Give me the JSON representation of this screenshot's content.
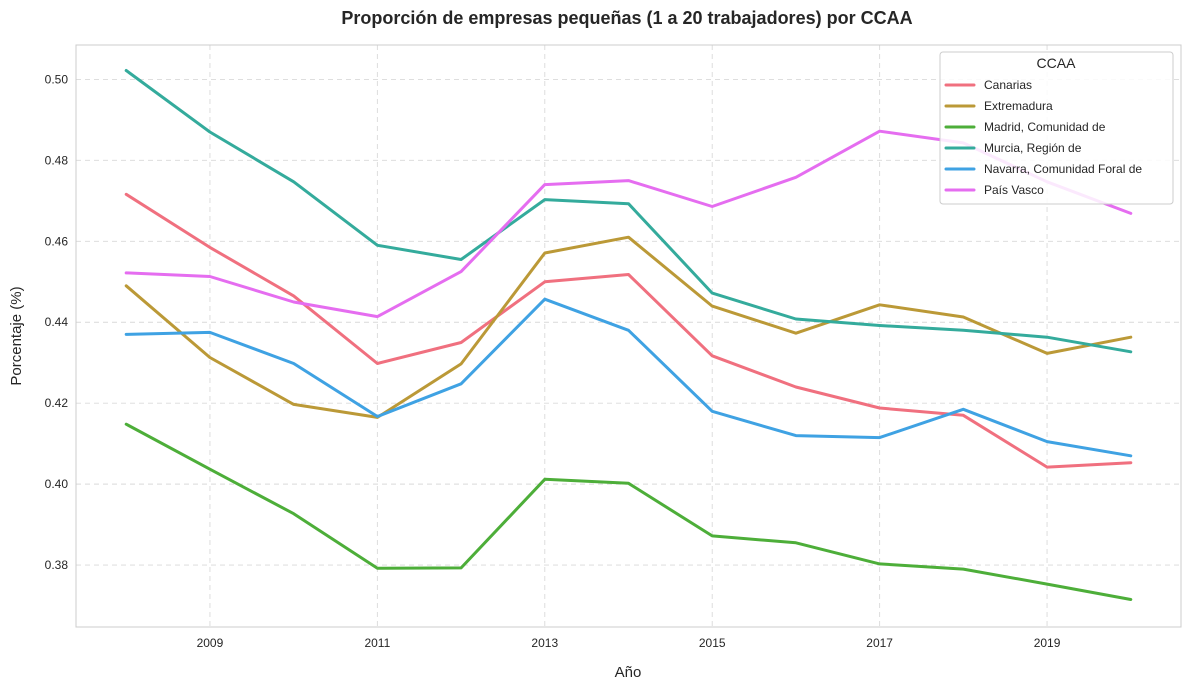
{
  "chart_data": {
    "type": "line",
    "title": "Proporción de empresas pequeñas (1 a 20 trabajadores) por CCAA",
    "xlabel": "Año",
    "ylabel": "Porcentaje (%)",
    "x": [
      2008,
      2009,
      2010,
      2011,
      2012,
      2013,
      2014,
      2015,
      2016,
      2017,
      2018,
      2019,
      2020
    ],
    "xticks": [
      2009,
      2011,
      2013,
      2015,
      2017,
      2019
    ],
    "yticks": [
      0.38,
      0.4,
      0.42,
      0.44,
      0.46,
      0.48,
      0.5
    ],
    "xlim": [
      2007.4,
      2020.6
    ],
    "ylim": [
      0.3647,
      0.5085
    ],
    "grid": true,
    "legend_title": "CCAA",
    "legend_position": "top-right",
    "series": [
      {
        "name": "Canarias",
        "color": "#f0707f",
        "values": [
          0.4716,
          0.4585,
          0.4465,
          0.4298,
          0.435,
          0.45,
          0.4518,
          0.4317,
          0.424,
          0.4188,
          0.417,
          0.4042,
          0.4053
        ]
      },
      {
        "name": "Extremadura",
        "color": "#bb9937",
        "values": [
          0.449,
          0.4313,
          0.4197,
          0.4165,
          0.4297,
          0.4571,
          0.461,
          0.444,
          0.4373,
          0.4443,
          0.4413,
          0.4323,
          0.4363
        ]
      },
      {
        "name": "Madrid, Comunidad de",
        "color": "#4dae39",
        "values": [
          0.4148,
          0.4037,
          0.3927,
          0.3792,
          0.3793,
          0.4012,
          0.4002,
          0.3872,
          0.3855,
          0.3803,
          0.379,
          0.3753,
          0.3715
        ]
      },
      {
        "name": "Murcia, Región de",
        "color": "#34ab9c",
        "values": [
          0.5022,
          0.487,
          0.4747,
          0.459,
          0.4555,
          0.4703,
          0.4693,
          0.4472,
          0.4408,
          0.4392,
          0.438,
          0.4363,
          0.4327
        ]
      },
      {
        "name": "Navarra, Comunidad Foral de",
        "color": "#3fa2e3",
        "values": [
          0.437,
          0.4375,
          0.4298,
          0.4167,
          0.4248,
          0.4457,
          0.438,
          0.418,
          0.412,
          0.4115,
          0.4185,
          0.4105,
          0.407
        ]
      },
      {
        "name": "País Vasco",
        "color": "#e56df0",
        "values": [
          0.4522,
          0.4513,
          0.445,
          0.4414,
          0.4525,
          0.474,
          0.475,
          0.4686,
          0.4758,
          0.4872,
          0.4843,
          0.4747,
          0.4669
        ]
      }
    ]
  }
}
